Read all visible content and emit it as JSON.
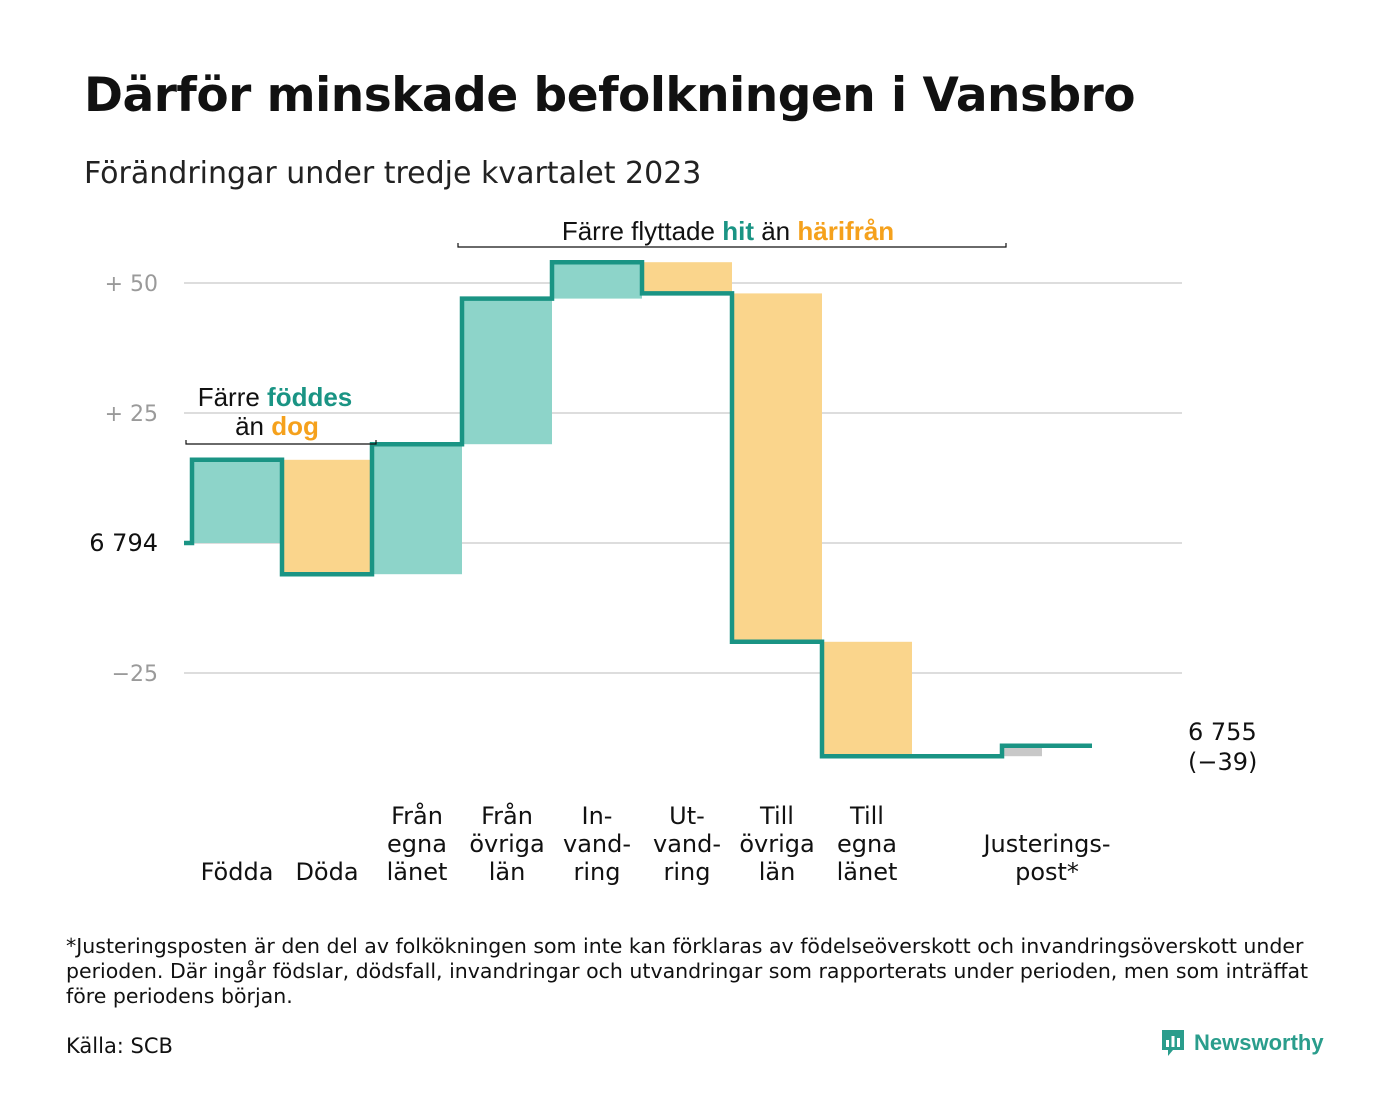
{
  "title": "Därför minskade befolkningen i Vansbro",
  "subtitle": "Förändringar under tredje kvartalet 2023",
  "footnote": "*Justeringsposten är den del av folkökningen som inte kan förklaras av födelseöverskott och invandringsöverskott under perioden. Där ingår födslar, dödsfall, invandringar och utvandringar som rapporterats under perioden, men som inträffat före periodens början.",
  "source": "Källa: SCB",
  "brand": "Newsworthy",
  "colors": {
    "positive": "#8dd4c9",
    "negative": "#fad58c",
    "adjustment": "#c8c8c8",
    "line": "#1a9484",
    "grid": "#dddddd",
    "accent_teal": "#1a9484",
    "accent_orange": "#f5a11c"
  },
  "annotations": {
    "births": {
      "pre": "Färre ",
      "hit": "föddes",
      "line2_pre": "än ",
      "away": "dog"
    },
    "migration": {
      "pre": "Färre flyttade ",
      "hit": "hit",
      "mid": " än ",
      "away": "härifrån"
    }
  },
  "chart_data": {
    "type": "waterfall",
    "start_value": 6794,
    "start_label": "6  794",
    "end_value": 6755,
    "end_label": "6 755",
    "change_label": "(−39)",
    "ytick_labels": [
      "+  50",
      "+  25",
      "−25"
    ],
    "ytick_values": [
      50,
      25,
      -25
    ],
    "ylim": [
      -40,
      55
    ],
    "steps": [
      {
        "label": [
          "Födda"
        ],
        "value": 16,
        "kind": "positive"
      },
      {
        "label": [
          "Döda"
        ],
        "value": -22,
        "kind": "negative"
      },
      {
        "label": [
          "Från",
          "egna",
          "länet"
        ],
        "value": 25,
        "kind": "positive"
      },
      {
        "label": [
          "Från",
          "övriga",
          "län"
        ],
        "value": 28,
        "kind": "positive"
      },
      {
        "label": [
          "In-",
          "vand-",
          "ring"
        ],
        "value": 7,
        "kind": "positive"
      },
      {
        "label": [
          "Ut-",
          "vand-",
          "ring"
        ],
        "value": -6,
        "kind": "negative"
      },
      {
        "label": [
          "Till",
          "övriga",
          "län"
        ],
        "value": -67,
        "kind": "negative"
      },
      {
        "label": [
          "Till",
          "egna",
          "länet"
        ],
        "value": -22,
        "kind": "negative"
      },
      {
        "label": [],
        "value": 0,
        "kind": "gap"
      },
      {
        "label": [
          "Justerings-",
          "post*"
        ],
        "value": 2,
        "kind": "adjustment"
      }
    ]
  }
}
